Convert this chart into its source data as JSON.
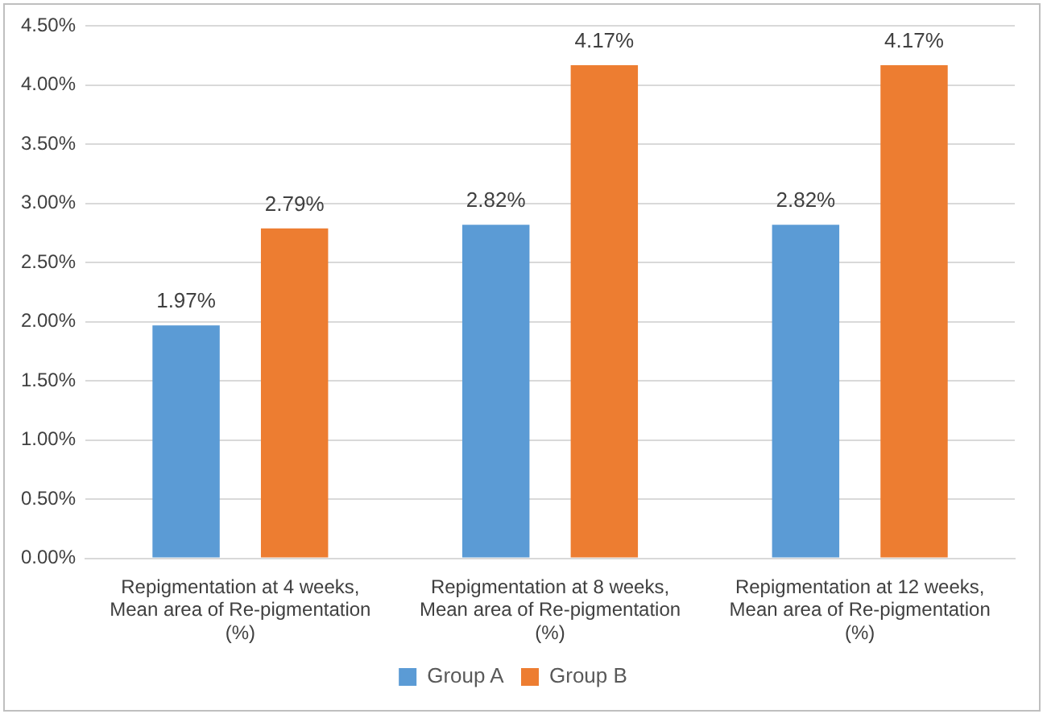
{
  "chart_data": {
    "type": "bar",
    "categories": [
      "Repigmentation at 4 weeks, Mean area of Re-pigmentation (%)",
      "Repigmentation at 8 weeks, Mean area of Re-pigmentation (%)",
      "Repigmentation at 12 weeks, Mean area of Re-pigmentation (%)"
    ],
    "series": [
      {
        "name": "Group A",
        "color": "#5b9bd5",
        "values": [
          1.97,
          2.82,
          2.82
        ],
        "value_labels": [
          "1.97%",
          "2.82%",
          "2.82%"
        ]
      },
      {
        "name": "Group B",
        "color": "#ed7d31",
        "values": [
          2.79,
          4.17,
          4.17
        ],
        "value_labels": [
          "2.79%",
          "4.17%",
          "4.17%"
        ]
      }
    ],
    "ylim": [
      0,
      4.5
    ],
    "yticks": [
      {
        "value": 0,
        "label": "0.00%"
      },
      {
        "value": 0.5,
        "label": "0.50%"
      },
      {
        "value": 1,
        "label": "1.00%"
      },
      {
        "value": 1.5,
        "label": "1.50%"
      },
      {
        "value": 2,
        "label": "2.00%"
      },
      {
        "value": 2.5,
        "label": "2.50%"
      },
      {
        "value": 3,
        "label": "3.00%"
      },
      {
        "value": 3.5,
        "label": "3.50%"
      },
      {
        "value": 4,
        "label": "4.00%"
      },
      {
        "value": 4.5,
        "label": "4.50%"
      }
    ],
    "grid": "y",
    "legend": "bottom"
  }
}
